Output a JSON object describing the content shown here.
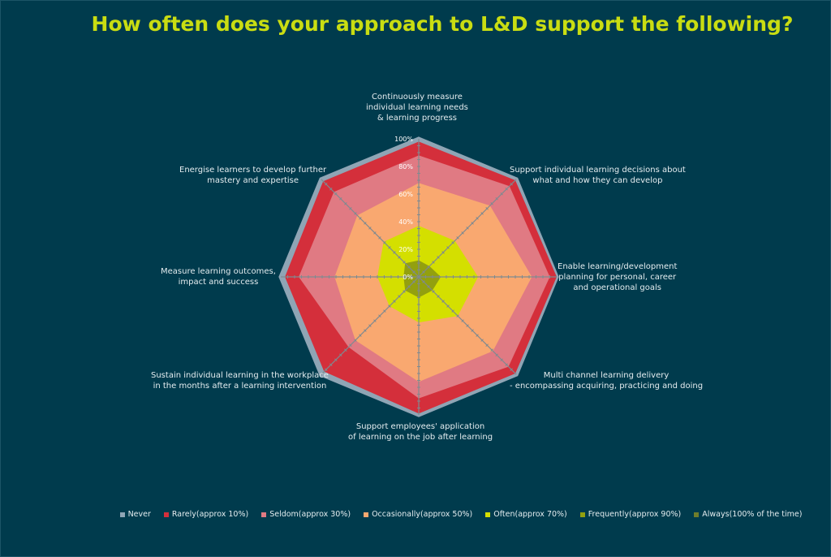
{
  "chart_data": {
    "type": "radar",
    "title": "How often does your approach to L&D support the following?",
    "axes": [
      "Continuously measure\nindividual learning needs\n& learning progress",
      "Support individual learning decisions about\nwhat and how they can develop",
      "Enable learning/development\nplanning for personal, career\nand operational goals",
      "Multi channel learning delivery\n- encompassing acquiring, practicing and doing",
      "Support employees' application\nof learning on the job after learning",
      "Sustain individual learning in the workplace\nin the months after a learning intervention",
      "Measure learning outcomes,\nimpact and success",
      "Energise learners to develop further\nmastery and expertise"
    ],
    "scale_labels": [
      "0%",
      "20%",
      "40%",
      "60%",
      "80%",
      "100%"
    ],
    "ylim": [
      0,
      100
    ],
    "stacked": true,
    "series": [
      {
        "name": "Always(100% of the time)",
        "color": "#6f7d2b",
        "values": [
          2,
          1,
          1,
          1,
          2,
          1,
          1,
          1
        ]
      },
      {
        "name": "Frequently(approx 90%)",
        "color": "#93a00f",
        "values": [
          12,
          11,
          16,
          14,
          15,
          14,
          11,
          14
        ]
      },
      {
        "name": "Often(approx 70%)",
        "color": "#d4df00",
        "values": [
          37,
          37,
          43,
          40,
          33,
          30,
          30,
          36
        ]
      },
      {
        "name": "Occasionally(approx 50%)",
        "color": "#f9a870",
        "values": [
          68,
          73,
          82,
          76,
          76,
          65,
          61,
          63
        ]
      },
      {
        "name": "Seldom(approx 30%)",
        "color": "#e07a83",
        "values": [
          88,
          93,
          95,
          92,
          88,
          72,
          87,
          87
        ]
      },
      {
        "name": "Rarely(approx 10%)",
        "color": "#d42f3b",
        "values": [
          98,
          99,
          100,
          99,
          99,
          97,
          97,
          98
        ]
      },
      {
        "name": "Never",
        "color": "#8fa5b5",
        "values": [
          100,
          100,
          100,
          100,
          100,
          100,
          100,
          100
        ]
      }
    ],
    "legend": {
      "position": "bottom",
      "entries": [
        {
          "label": "Never",
          "color": "#8fa5b5"
        },
        {
          "label": "Rarely(approx 10%)",
          "color": "#d42f3b"
        },
        {
          "label": "Seldom(approx 30%)",
          "color": "#e07a83"
        },
        {
          "label": "Occasionally(approx 50%)",
          "color": "#f9a870"
        },
        {
          "label": "Often(approx 70%)",
          "color": "#d4df00"
        },
        {
          "label": "Frequently(approx 90%)",
          "color": "#93a00f"
        },
        {
          "label": "Always(100% of the time)",
          "color": "#6f7d2b"
        }
      ]
    }
  }
}
